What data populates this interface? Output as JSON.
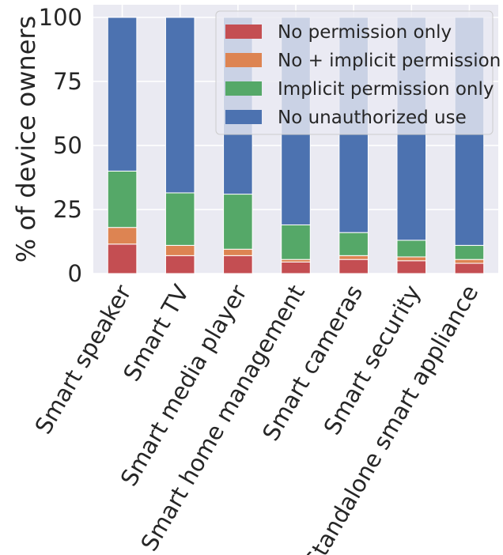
{
  "chart_data": {
    "type": "bar",
    "stacked": true,
    "ylabel": "% of device owners",
    "xlabel": "",
    "ylim": [
      0,
      100
    ],
    "yticks": [
      0,
      25,
      50,
      75,
      100
    ],
    "grid": true,
    "legend_position": "top-right",
    "categories": [
      "Smart speaker",
      "Smart TV",
      "Smart media player",
      "Smart home management",
      "Smart cameras",
      "Smart security",
      "Standalone smart appliance"
    ],
    "series": [
      {
        "name": "No permission only",
        "color": "#c44e52",
        "values": [
          11.5,
          7,
          7,
          4.5,
          5.5,
          5,
          4
        ]
      },
      {
        "name": "No + implicit permission",
        "color": "#dd8452",
        "values": [
          6.5,
          4,
          2.5,
          1,
          1.5,
          1.5,
          1.5
        ]
      },
      {
        "name": "Implicit permission only",
        "color": "#55a868",
        "values": [
          22,
          20.5,
          21.5,
          13.5,
          9,
          6.5,
          5.5
        ]
      },
      {
        "name": "No unauthorized use",
        "color": "#4c72b0",
        "values": [
          60,
          68.5,
          69,
          81,
          84,
          87,
          89
        ]
      }
    ]
  }
}
